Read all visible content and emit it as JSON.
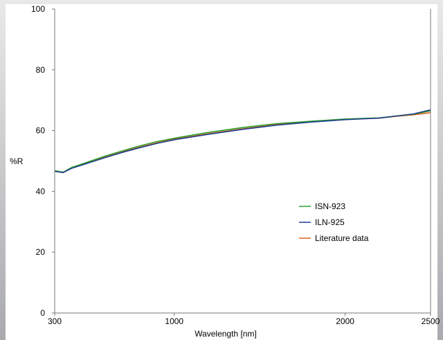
{
  "chart_data": {
    "type": "line",
    "xlabel": "Wavelength [nm]",
    "ylabel": "%R",
    "xlim": [
      300,
      2500
    ],
    "ylim": [
      0,
      100
    ],
    "x_ticks": [
      300,
      1000,
      2000,
      2500
    ],
    "y_ticks": [
      0,
      20,
      40,
      60,
      80,
      100
    ],
    "grid": false,
    "legend_position": "lower-right",
    "series": [
      {
        "name": "ISN-923",
        "color": "#2aa02a",
        "x": [
          300,
          350,
          400,
          500,
          600,
          700,
          800,
          900,
          1000,
          1200,
          1400,
          1600,
          1800,
          2000,
          2200,
          2300,
          2400,
          2500
        ],
        "y": [
          46.8,
          46.3,
          47.9,
          49.8,
          51.7,
          53.4,
          55.0,
          56.4,
          57.5,
          59.4,
          61.0,
          62.3,
          63.1,
          63.8,
          64.2,
          64.8,
          65.4,
          66.5
        ]
      },
      {
        "name": "ILN-925",
        "color": "#1f3f8f",
        "x": [
          300,
          350,
          400,
          500,
          600,
          700,
          800,
          900,
          1000,
          1200,
          1400,
          1600,
          1800,
          2000,
          2200,
          2300,
          2400,
          2500
        ],
        "y": [
          46.6,
          46.2,
          47.6,
          49.4,
          51.2,
          52.9,
          54.4,
          55.8,
          57.0,
          58.8,
          60.4,
          61.8,
          62.8,
          63.6,
          64.1,
          64.8,
          65.5,
          66.8
        ]
      },
      {
        "name": "Literature data",
        "color": "#e0621e",
        "x": [
          300,
          350,
          400,
          500,
          600,
          700,
          800,
          900,
          1000,
          1200,
          1400,
          1600,
          1800,
          2000,
          2200,
          2300,
          2400,
          2500
        ],
        "y": [
          46.7,
          46.2,
          47.7,
          49.6,
          51.4,
          53.1,
          54.6,
          56.0,
          57.2,
          59.0,
          60.6,
          62.0,
          62.9,
          63.7,
          64.1,
          64.7,
          65.2,
          65.9
        ]
      }
    ]
  }
}
